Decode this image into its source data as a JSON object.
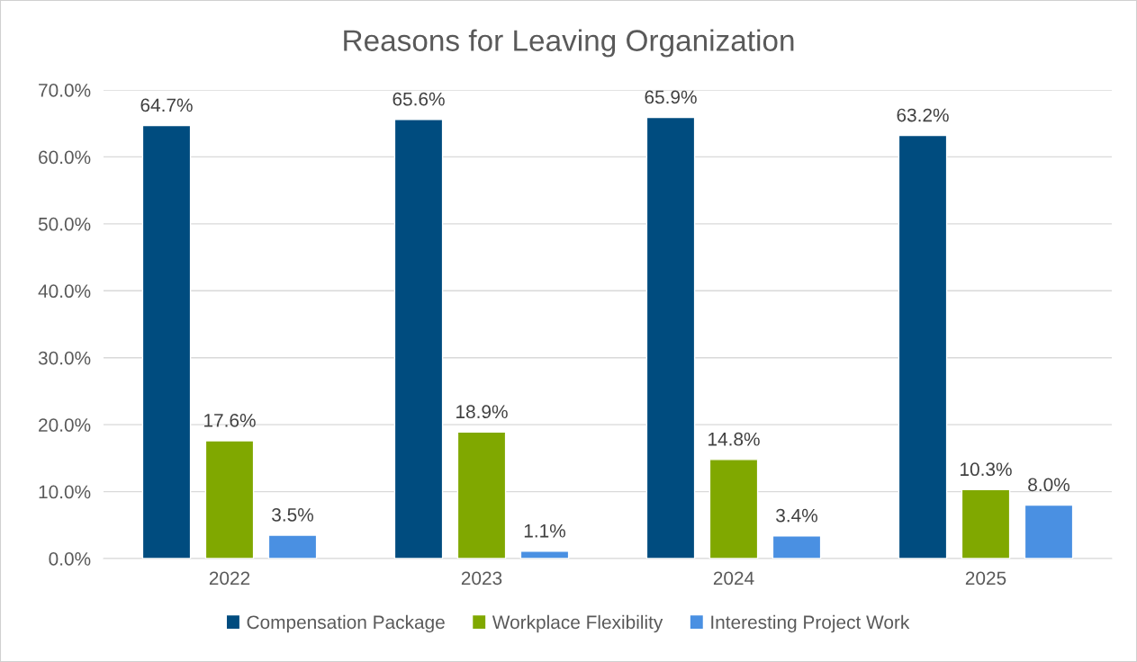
{
  "chart_data": {
    "type": "bar",
    "title": "Reasons for Leaving Organization",
    "categories": [
      "2022",
      "2023",
      "2024",
      "2025"
    ],
    "series": [
      {
        "name": "Compensation Package",
        "color": "#004c7f",
        "values": [
          64.7,
          65.6,
          65.9,
          63.2
        ],
        "value_labels": [
          "64.7%",
          "65.6%",
          "65.9%",
          "63.2%"
        ]
      },
      {
        "name": "Workplace Flexibility",
        "color": "#80a800",
        "values": [
          17.6,
          18.9,
          14.8,
          10.3
        ],
        "value_labels": [
          "17.6%",
          "18.9%",
          "14.8%",
          "10.3%"
        ]
      },
      {
        "name": "Interesting Project Work",
        "color": "#4a90e2",
        "values": [
          3.5,
          1.1,
          3.4,
          8.0
        ],
        "value_labels": [
          "3.5%",
          "1.1%",
          "3.4%",
          "8.0%"
        ]
      }
    ],
    "ylim": [
      0,
      70
    ],
    "yticks": [
      {
        "value": 0,
        "label": "0.0%"
      },
      {
        "value": 10,
        "label": "10.0%"
      },
      {
        "value": 20,
        "label": "20.0%"
      },
      {
        "value": 30,
        "label": "30.0%"
      },
      {
        "value": 40,
        "label": "40.0%"
      },
      {
        "value": 50,
        "label": "50.0%"
      },
      {
        "value": 60,
        "label": "60.0%"
      },
      {
        "value": 70,
        "label": "70.0%"
      }
    ],
    "grid": "y",
    "legend": "bottom"
  }
}
